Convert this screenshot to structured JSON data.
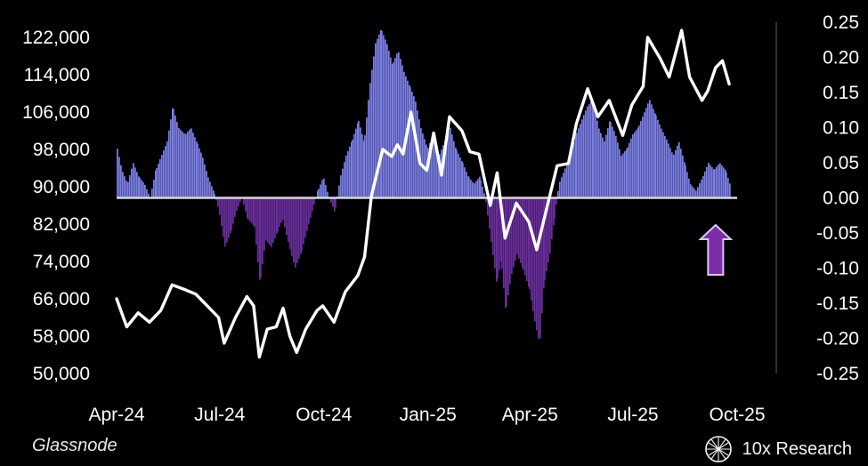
{
  "source_label": "Glassnode",
  "brand": {
    "name": "10x Research",
    "icon": "globe-icon"
  },
  "colors": {
    "background": "#000000",
    "price_line": "#ffffff",
    "positive_fill": "#7b7fe6",
    "negative_fill": "#6a2e9e",
    "zero_line": "#d8d8d8",
    "arrow": "#7b2ea8"
  },
  "chart_data": {
    "type": "area",
    "title": "",
    "xlabel": "",
    "ylabel_left": "",
    "ylabel_right": "",
    "x_tick_labels": [
      "Apr-24",
      "Jul-24",
      "Oct-24",
      "Jan-25",
      "Apr-25",
      "Jul-25",
      "Oct-25"
    ],
    "x_range": [
      "2024-04-01",
      "2025-10-01"
    ],
    "left_axis": {
      "ticks": [
        "122,000",
        "114,000",
        "106,000",
        "98,000",
        "90,000",
        "82,000",
        "74,000",
        "66,000",
        "58,000",
        "50,000"
      ],
      "range": [
        50000,
        122000
      ]
    },
    "right_axis": {
      "ticks": [
        "0.25",
        "0.20",
        "0.15",
        "0.10",
        "0.05",
        "0.00",
        "-0.05",
        "-0.10",
        "-0.15",
        "-0.20",
        "-0.25"
      ],
      "range": [
        -0.25,
        0.25
      ]
    },
    "grid": false,
    "annotation": {
      "type": "arrow-up",
      "date": "2025-09-12"
    },
    "series": [
      {
        "axis": "left",
        "style": "line",
        "points": [
          [
            "2024-04-01",
            66000
          ],
          [
            "2024-04-10",
            60000
          ],
          [
            "2024-04-20",
            63000
          ],
          [
            "2024-04-30",
            61000
          ],
          [
            "2024-05-10",
            63500
          ],
          [
            "2024-05-20",
            69000
          ],
          [
            "2024-05-31",
            68000
          ],
          [
            "2024-06-10",
            67000
          ],
          [
            "2024-06-20",
            64500
          ],
          [
            "2024-06-30",
            62000
          ],
          [
            "2024-07-05",
            56500
          ],
          [
            "2024-07-15",
            62000
          ],
          [
            "2024-07-25",
            66500
          ],
          [
            "2024-07-31",
            64500
          ],
          [
            "2024-08-05",
            53500
          ],
          [
            "2024-08-12",
            59500
          ],
          [
            "2024-08-20",
            60000
          ],
          [
            "2024-08-26",
            64000
          ],
          [
            "2024-09-01",
            58000
          ],
          [
            "2024-09-07",
            54500
          ],
          [
            "2024-09-15",
            59500
          ],
          [
            "2024-09-25",
            63500
          ],
          [
            "2024-09-30",
            64500
          ],
          [
            "2024-10-10",
            61000
          ],
          [
            "2024-10-20",
            67500
          ],
          [
            "2024-10-31",
            71000
          ],
          [
            "2024-11-06",
            75000
          ],
          [
            "2024-11-12",
            88000
          ],
          [
            "2024-11-22",
            98000
          ],
          [
            "2024-11-30",
            96500
          ],
          [
            "2024-12-05",
            99000
          ],
          [
            "2024-12-10",
            97000
          ],
          [
            "2024-12-17",
            106000
          ],
          [
            "2024-12-25",
            95000
          ],
          [
            "2024-12-31",
            93500
          ],
          [
            "2025-01-06",
            101500
          ],
          [
            "2025-01-13",
            92500
          ],
          [
            "2025-01-20",
            105000
          ],
          [
            "2025-01-31",
            102000
          ],
          [
            "2025-02-07",
            97500
          ],
          [
            "2025-02-15",
            97000
          ],
          [
            "2025-02-25",
            86000
          ],
          [
            "2025-03-03",
            93000
          ],
          [
            "2025-03-10",
            79000
          ],
          [
            "2025-03-20",
            86500
          ],
          [
            "2025-03-31",
            82500
          ],
          [
            "2025-04-07",
            76500
          ],
          [
            "2025-04-15",
            84500
          ],
          [
            "2025-04-25",
            94500
          ],
          [
            "2025-05-05",
            95000
          ],
          [
            "2025-05-12",
            103500
          ],
          [
            "2025-05-22",
            111000
          ],
          [
            "2025-05-31",
            105000
          ],
          [
            "2025-06-10",
            108500
          ],
          [
            "2025-06-22",
            101000
          ],
          [
            "2025-06-30",
            107500
          ],
          [
            "2025-07-10",
            111500
          ],
          [
            "2025-07-14",
            122000
          ],
          [
            "2025-07-25",
            117500
          ],
          [
            "2025-08-02",
            113500
          ],
          [
            "2025-08-13",
            123500
          ],
          [
            "2025-08-20",
            113500
          ],
          [
            "2025-08-31",
            108500
          ],
          [
            "2025-09-05",
            110500
          ],
          [
            "2025-09-12",
            115500
          ],
          [
            "2025-09-18",
            117000
          ],
          [
            "2025-09-24",
            112000
          ]
        ]
      },
      {
        "axis": "right",
        "style": "area",
        "points": [
          [
            "2024-04-01",
            0.07
          ],
          [
            "2024-04-05",
            0.04
          ],
          [
            "2024-04-10",
            0.02
          ],
          [
            "2024-04-15",
            0.05
          ],
          [
            "2024-04-20",
            0.03
          ],
          [
            "2024-04-25",
            0.02
          ],
          [
            "2024-04-30",
            0.0
          ],
          [
            "2024-05-05",
            0.04
          ],
          [
            "2024-05-10",
            0.06
          ],
          [
            "2024-05-15",
            0.08
          ],
          [
            "2024-05-20",
            0.13
          ],
          [
            "2024-05-25",
            0.1
          ],
          [
            "2024-05-31",
            0.09
          ],
          [
            "2024-06-05",
            0.1
          ],
          [
            "2024-06-10",
            0.08
          ],
          [
            "2024-06-15",
            0.06
          ],
          [
            "2024-06-20",
            0.03
          ],
          [
            "2024-06-25",
            0.01
          ],
          [
            "2024-06-30",
            -0.02
          ],
          [
            "2024-07-05",
            -0.07
          ],
          [
            "2024-07-10",
            -0.05
          ],
          [
            "2024-07-15",
            -0.02
          ],
          [
            "2024-07-20",
            0.0
          ],
          [
            "2024-07-25",
            -0.03
          ],
          [
            "2024-07-31",
            -0.04
          ],
          [
            "2024-08-05",
            -0.12
          ],
          [
            "2024-08-10",
            -0.06
          ],
          [
            "2024-08-15",
            -0.07
          ],
          [
            "2024-08-20",
            -0.05
          ],
          [
            "2024-08-25",
            -0.03
          ],
          [
            "2024-08-31",
            -0.07
          ],
          [
            "2024-09-05",
            -0.1
          ],
          [
            "2024-09-10",
            -0.08
          ],
          [
            "2024-09-15",
            -0.05
          ],
          [
            "2024-09-20",
            -0.02
          ],
          [
            "2024-09-25",
            0.01
          ],
          [
            "2024-09-30",
            0.03
          ],
          [
            "2024-10-05",
            0.0
          ],
          [
            "2024-10-10",
            -0.02
          ],
          [
            "2024-10-15",
            0.03
          ],
          [
            "2024-10-20",
            0.06
          ],
          [
            "2024-10-25",
            0.08
          ],
          [
            "2024-10-31",
            0.11
          ],
          [
            "2024-11-05",
            0.08
          ],
          [
            "2024-11-10",
            0.16
          ],
          [
            "2024-11-15",
            0.22
          ],
          [
            "2024-11-20",
            0.24
          ],
          [
            "2024-11-25",
            0.22
          ],
          [
            "2024-11-30",
            0.19
          ],
          [
            "2024-12-05",
            0.21
          ],
          [
            "2024-12-10",
            0.18
          ],
          [
            "2024-12-15",
            0.16
          ],
          [
            "2024-12-20",
            0.14
          ],
          [
            "2024-12-25",
            0.1
          ],
          [
            "2024-12-31",
            0.07
          ],
          [
            "2025-01-05",
            0.09
          ],
          [
            "2025-01-10",
            0.06
          ],
          [
            "2025-01-15",
            0.08
          ],
          [
            "2025-01-20",
            0.1
          ],
          [
            "2025-01-25",
            0.07
          ],
          [
            "2025-01-31",
            0.05
          ],
          [
            "2025-02-05",
            0.03
          ],
          [
            "2025-02-10",
            0.02
          ],
          [
            "2025-02-15",
            0.03
          ],
          [
            "2025-02-20",
            0.0
          ],
          [
            "2025-02-25",
            -0.06
          ],
          [
            "2025-03-02",
            -0.12
          ],
          [
            "2025-03-06",
            -0.09
          ],
          [
            "2025-03-10",
            -0.16
          ],
          [
            "2025-03-15",
            -0.11
          ],
          [
            "2025-03-20",
            -0.08
          ],
          [
            "2025-03-25",
            -0.1
          ],
          [
            "2025-03-31",
            -0.13
          ],
          [
            "2025-04-04",
            -0.17
          ],
          [
            "2025-04-09",
            -0.21
          ],
          [
            "2025-04-13",
            -0.12
          ],
          [
            "2025-04-18",
            -0.08
          ],
          [
            "2025-04-22",
            -0.03
          ],
          [
            "2025-04-26",
            0.02
          ],
          [
            "2025-05-01",
            0.04
          ],
          [
            "2025-05-06",
            0.06
          ],
          [
            "2025-05-11",
            0.09
          ],
          [
            "2025-05-16",
            0.11
          ],
          [
            "2025-05-21",
            0.13
          ],
          [
            "2025-05-26",
            0.14
          ],
          [
            "2025-05-31",
            0.1
          ],
          [
            "2025-06-05",
            0.08
          ],
          [
            "2025-06-10",
            0.11
          ],
          [
            "2025-06-15",
            0.09
          ],
          [
            "2025-06-20",
            0.06
          ],
          [
            "2025-06-25",
            0.07
          ],
          [
            "2025-06-30",
            0.09
          ],
          [
            "2025-07-05",
            0.1
          ],
          [
            "2025-07-10",
            0.12
          ],
          [
            "2025-07-15",
            0.14
          ],
          [
            "2025-07-20",
            0.12
          ],
          [
            "2025-07-25",
            0.1
          ],
          [
            "2025-07-31",
            0.08
          ],
          [
            "2025-08-05",
            0.06
          ],
          [
            "2025-08-10",
            0.08
          ],
          [
            "2025-08-15",
            0.05
          ],
          [
            "2025-08-20",
            0.02
          ],
          [
            "2025-08-25",
            0.01
          ],
          [
            "2025-08-31",
            0.03
          ],
          [
            "2025-09-05",
            0.05
          ],
          [
            "2025-09-10",
            0.04
          ],
          [
            "2025-09-15",
            0.05
          ],
          [
            "2025-09-20",
            0.04
          ],
          [
            "2025-09-24",
            0.02
          ]
        ]
      }
    ]
  }
}
